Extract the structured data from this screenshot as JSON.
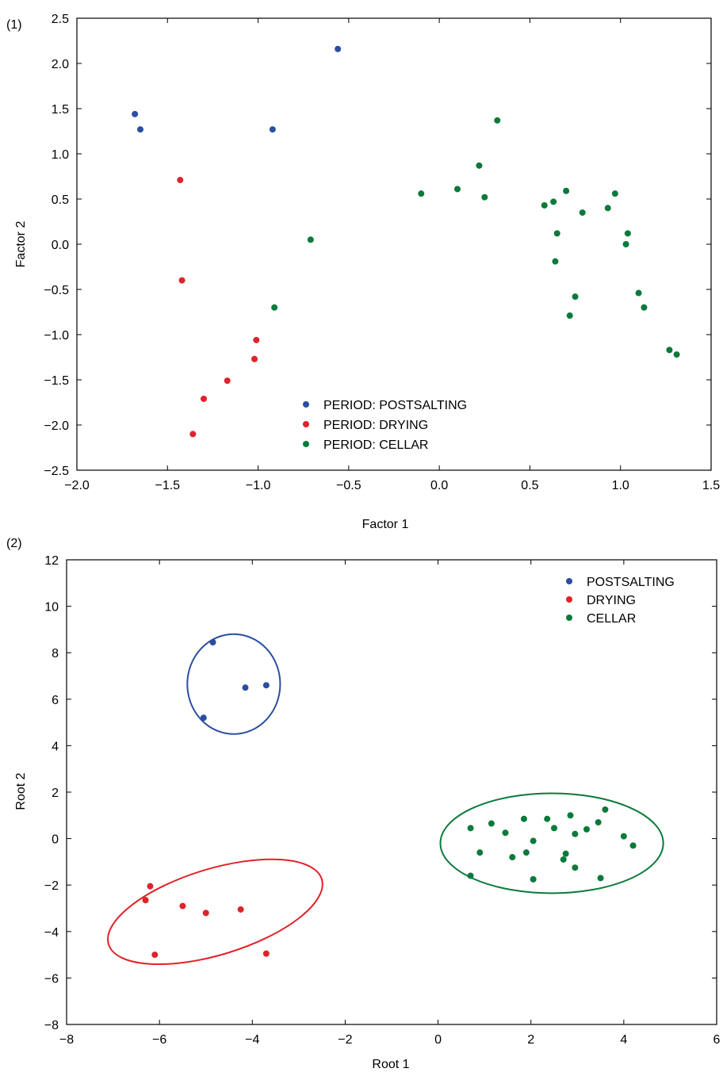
{
  "chart_data": [
    {
      "type": "scatter",
      "panel_label": "(1)",
      "xlabel": "Factor 1",
      "ylabel": "Factor 2",
      "xlim": [
        -2.0,
        1.5
      ],
      "ylim": [
        -2.5,
        2.5
      ],
      "xticks": [
        -2.0,
        -1.5,
        -1.0,
        -0.5,
        0.0,
        0.5,
        1.0,
        1.5
      ],
      "xtick_labels": [
        "−2.0",
        "−1.5",
        "−1.0",
        "−0.5",
        "0.0",
        "0.5",
        "1.0",
        "1.5"
      ],
      "yticks": [
        -2.5,
        -2.0,
        -1.5,
        -1.0,
        -0.5,
        0.0,
        0.5,
        1.0,
        1.5,
        2.0,
        2.5
      ],
      "ytick_labels": [
        "−2.5",
        "−2.0",
        "−1.5",
        "−1.0",
        "−0.5",
        "0.0",
        "0.5",
        "1.0",
        "1.5",
        "2.0",
        "2.5"
      ],
      "legend_position": "bottom-center",
      "grid": false,
      "series": [
        {
          "name": "PERIOD: POSTSALTING",
          "color": "#2a4ea0",
          "points": [
            [
              -1.68,
              1.44
            ],
            [
              -1.65,
              1.27
            ],
            [
              -0.92,
              1.27
            ],
            [
              -0.56,
              2.16
            ]
          ]
        },
        {
          "name": "PERIOD: DRYING",
          "color": "#e0222a",
          "points": [
            [
              -1.43,
              0.71
            ],
            [
              -1.42,
              -0.4
            ],
            [
              -1.01,
              -1.06
            ],
            [
              -1.02,
              -1.27
            ],
            [
              -1.17,
              -1.51
            ],
            [
              -1.3,
              -1.71
            ],
            [
              -1.36,
              -2.1
            ]
          ]
        },
        {
          "name": "PERIOD: CELLAR",
          "color": "#0a7a3a",
          "points": [
            [
              -0.71,
              0.05
            ],
            [
              -0.91,
              -0.7
            ],
            [
              -0.1,
              0.56
            ],
            [
              0.1,
              0.61
            ],
            [
              0.22,
              0.87
            ],
            [
              0.25,
              0.52
            ],
            [
              0.32,
              1.37
            ],
            [
              0.58,
              0.43
            ],
            [
              0.63,
              0.47
            ],
            [
              0.65,
              0.12
            ],
            [
              0.64,
              -0.19
            ],
            [
              0.7,
              0.59
            ],
            [
              0.75,
              -0.58
            ],
            [
              0.72,
              -0.79
            ],
            [
              0.79,
              0.35
            ],
            [
              0.93,
              0.4
            ],
            [
              0.97,
              0.56
            ],
            [
              1.03,
              0.0
            ],
            [
              1.04,
              0.12
            ],
            [
              1.1,
              -0.54
            ],
            [
              1.13,
              -0.7
            ],
            [
              1.27,
              -1.17
            ],
            [
              1.31,
              -1.22
            ]
          ]
        }
      ]
    },
    {
      "type": "scatter",
      "panel_label": "(2)",
      "xlabel": "Root 1",
      "ylabel": "Root 2",
      "xlim": [
        -8,
        6
      ],
      "ylim": [
        -8,
        12
      ],
      "xticks": [
        -8,
        -6,
        -4,
        -2,
        0,
        2,
        4,
        6
      ],
      "xtick_labels": [
        "−8",
        "−6",
        "−4",
        "−2",
        "0",
        "2",
        "4",
        "6"
      ],
      "yticks": [
        -8,
        -6,
        -4,
        -2,
        0,
        2,
        4,
        6,
        8,
        10,
        12
      ],
      "ytick_labels": [
        "−8",
        "−6",
        "−4",
        "−2",
        "0",
        "2",
        "4",
        "6",
        "8",
        "10",
        "12"
      ],
      "legend_position": "top-right",
      "grid": false,
      "series": [
        {
          "name": "POSTSALTING",
          "color": "#2a4ea0",
          "points": [
            [
              -4.85,
              8.45
            ],
            [
              -4.15,
              6.5
            ],
            [
              -3.7,
              6.6
            ],
            [
              -5.05,
              5.2
            ]
          ],
          "ellipse": {
            "cx": -4.4,
            "cy": 6.65,
            "rx": 1.0,
            "ry": 2.15,
            "angle": 0
          }
        },
        {
          "name": "DRYING",
          "color": "#e0222a",
          "points": [
            [
              -6.2,
              -2.05
            ],
            [
              -6.3,
              -2.65
            ],
            [
              -5.5,
              -2.9
            ],
            [
              -5.0,
              -3.2
            ],
            [
              -4.25,
              -3.05
            ],
            [
              -6.1,
              -5.0
            ],
            [
              -3.7,
              -4.95
            ]
          ],
          "ellipse": {
            "cx": -4.8,
            "cy": -3.15,
            "rx": 2.4,
            "ry": 1.85,
            "angle": -17
          }
        },
        {
          "name": "CELLAR",
          "color": "#0a7a3a",
          "points": [
            [
              0.7,
              0.45
            ],
            [
              1.15,
              0.65
            ],
            [
              1.45,
              0.25
            ],
            [
              1.85,
              0.85
            ],
            [
              2.35,
              0.85
            ],
            [
              2.85,
              1.0
            ],
            [
              3.6,
              1.25
            ],
            [
              3.45,
              0.7
            ],
            [
              3.2,
              0.4
            ],
            [
              2.95,
              0.2
            ],
            [
              2.5,
              0.45
            ],
            [
              2.05,
              -0.1
            ],
            [
              4.0,
              0.1
            ],
            [
              4.2,
              -0.3
            ],
            [
              0.9,
              -0.6
            ],
            [
              1.6,
              -0.8
            ],
            [
              1.9,
              -0.6
            ],
            [
              2.75,
              -0.65
            ],
            [
              2.7,
              -0.9
            ],
            [
              2.95,
              -1.25
            ],
            [
              0.7,
              -1.6
            ],
            [
              2.05,
              -1.75
            ],
            [
              3.5,
              -1.7
            ]
          ],
          "ellipse": {
            "cx": 2.45,
            "cy": -0.2,
            "rx": 2.4,
            "ry": 2.15,
            "angle": 0
          }
        }
      ]
    }
  ]
}
